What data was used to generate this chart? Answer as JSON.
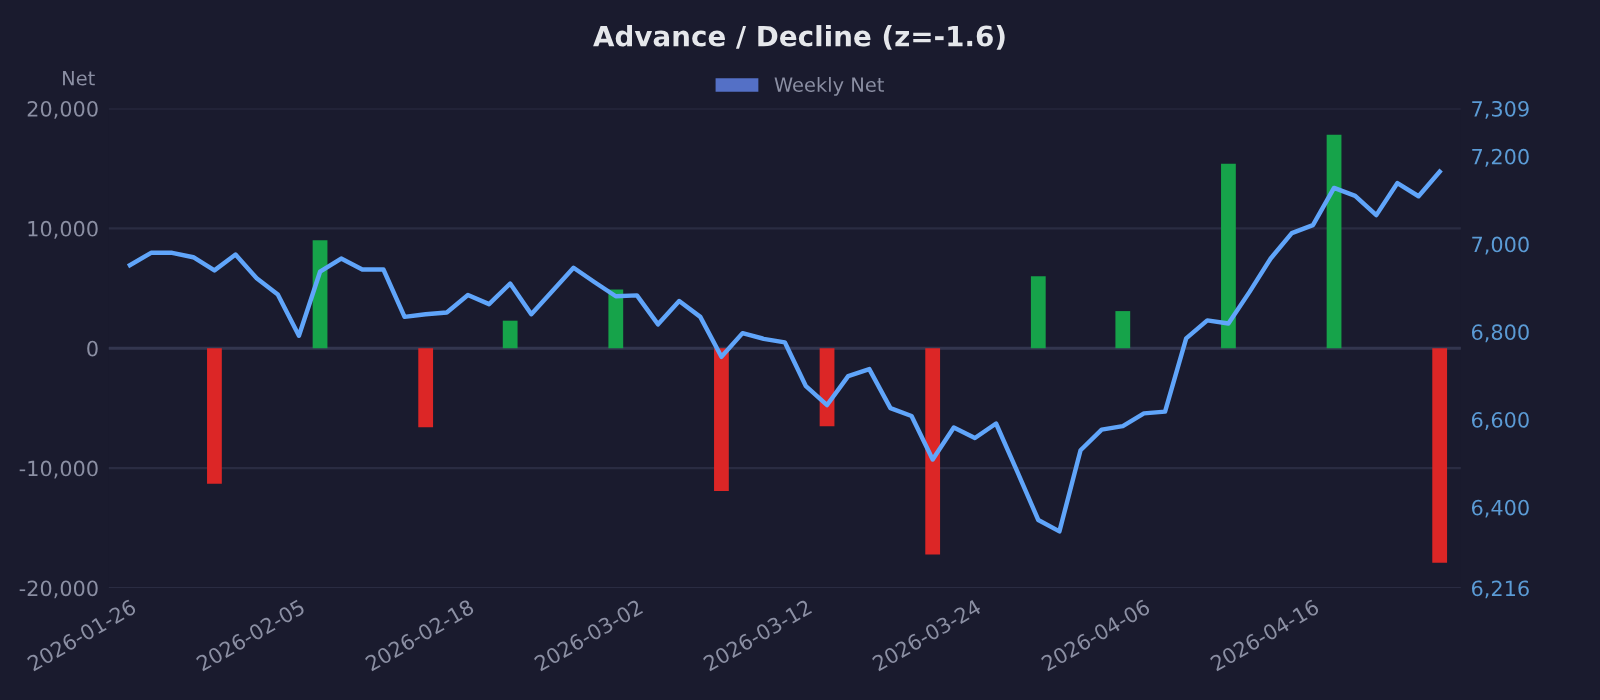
{
  "chart_data": {
    "type": "bar",
    "title": "Advance / Decline (z=-1.6)",
    "ylabel": "Net",
    "categories": [
      "2026-01-26",
      null,
      null,
      null,
      null,
      null,
      null,
      null,
      "2026-02-05",
      null,
      null,
      null,
      null,
      null,
      null,
      null,
      "2026-02-18",
      null,
      null,
      null,
      null,
      null,
      null,
      null,
      "2026-03-02",
      null,
      null,
      null,
      null,
      null,
      null,
      null,
      "2026-03-12",
      null,
      null,
      null,
      null,
      null,
      null,
      null,
      "2026-03-24",
      null,
      null,
      null,
      null,
      null,
      null,
      null,
      "2026-04-06",
      null,
      null,
      null,
      null,
      null,
      null,
      null,
      "2026-04-16",
      null,
      null,
      null,
      null,
      null,
      null
    ],
    "series": [
      {
        "name": "Weekly Net",
        "color": "#5470c6",
        "values": [
          null,
          null,
          null,
          null,
          -11300,
          null,
          null,
          null,
          null,
          9000,
          null,
          null,
          null,
          null,
          -6600,
          null,
          null,
          null,
          2300,
          null,
          null,
          null,
          null,
          4900,
          null,
          null,
          null,
          null,
          -11900,
          null,
          null,
          null,
          null,
          -6500,
          null,
          null,
          null,
          null,
          -17200,
          null,
          null,
          null,
          null,
          6000,
          null,
          null,
          null,
          3100,
          null,
          null,
          null,
          null,
          15400,
          null,
          null,
          null,
          null,
          17800,
          null,
          null,
          null,
          null,
          -17900
        ],
        "colors": [
          null,
          null,
          null,
          null,
          "#dc2626",
          null,
          null,
          null,
          null,
          "#16a34a",
          null,
          null,
          null,
          null,
          "#dc2626",
          null,
          null,
          null,
          "#16a34a",
          null,
          null,
          null,
          null,
          "#16a34a",
          null,
          null,
          null,
          null,
          "#dc2626",
          null,
          null,
          null,
          null,
          "#dc2626",
          null,
          null,
          null,
          null,
          "#dc2626",
          null,
          null,
          null,
          null,
          "#16a34a",
          null,
          null,
          null,
          "#16a34a",
          null,
          null,
          null,
          null,
          "#16a34a",
          null,
          null,
          null,
          null,
          "#16a34a",
          null,
          null,
          null,
          null,
          "#dc2626"
        ]
      },
      {
        "type": "line",
        "axis": "y2",
        "color": "#60a5fa",
        "values": [
          6952,
          6980,
          6980,
          6970,
          6940,
          6976,
          6922,
          6885,
          6791,
          6937,
          6967,
          6942,
          6942,
          6834,
          6840,
          6844,
          6884,
          6863,
          6910,
          6840,
          6893,
          6946,
          6913,
          6881,
          6883,
          6817,
          6870,
          6834,
          6743,
          6797,
          6784,
          6776,
          6676,
          6633,
          6699,
          6715,
          6626,
          6608,
          6509,
          6582,
          6558,
          6591,
          6482,
          6371,
          6345,
          6530,
          6577,
          6585,
          6614,
          6618,
          6785,
          6826,
          6819,
          6891,
          6967,
          7025,
          7043,
          7128,
          7110,
          7066,
          7139,
          7109,
          7165
        ]
      }
    ],
    "ylim": [
      -20000,
      20000
    ],
    "yticks": [
      {
        "value": -20000,
        "label": "-20,000"
      },
      {
        "value": -10000,
        "label": "-10,000"
      },
      0,
      {
        "value": 10000,
        "label": "10,000"
      },
      {
        "value": 20000,
        "label": "20,000"
      }
    ],
    "y2lim": [
      6216,
      7309
    ],
    "y2ticks": [
      {
        "value": 6216,
        "label": "6,216"
      },
      {
        "value": 6400,
        "label": "6,400"
      },
      {
        "value": 6600,
        "label": "6,600"
      },
      {
        "value": 6800,
        "label": "6,800"
      },
      {
        "value": 7000,
        "label": "7,000"
      },
      {
        "value": 7200,
        "label": "7,200"
      },
      {
        "value": 7309,
        "label": "7,309"
      }
    ],
    "grid": "y",
    "legend": "top",
    "marker": "none",
    "line_style": "solid"
  }
}
